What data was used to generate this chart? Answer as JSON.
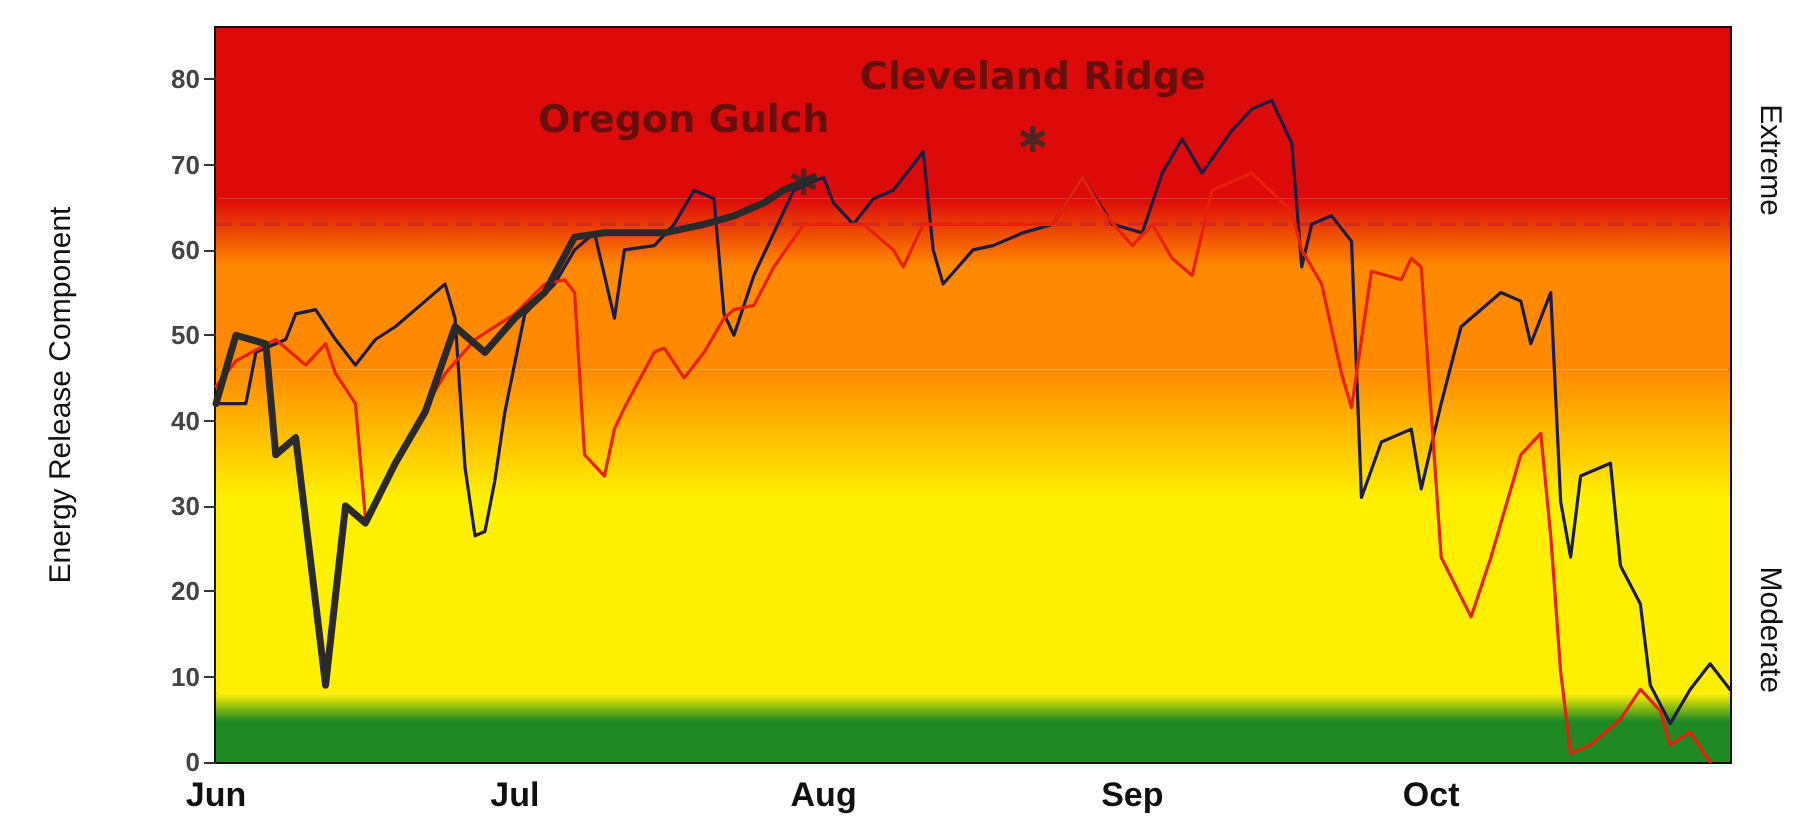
{
  "chart_data": {
    "type": "line",
    "ylabel": "Energy Release Component",
    "xlim": [
      "--06-01",
      "--10-31"
    ],
    "ylim": [
      0,
      86
    ],
    "xticks": [
      {
        "value": "--06-01",
        "label": "Jun"
      },
      {
        "value": "--07-01",
        "label": "Jul"
      },
      {
        "value": "--08-01",
        "label": "Aug"
      },
      {
        "value": "--09-01",
        "label": "Sep"
      },
      {
        "value": "--10-01",
        "label": "Oct"
      }
    ],
    "yticks": [
      0,
      10,
      20,
      30,
      40,
      50,
      60,
      70,
      80
    ],
    "grid": false,
    "marker": "none",
    "line_style": "solid",
    "series": [
      {
        "color": "#1c1c44",
        "x": [
          "--06-01",
          "--06-04",
          "--06-05",
          "--06-08",
          "--06-09",
          "--06-11",
          "--06-13",
          "--06-15",
          "--06-17",
          "--06-19",
          "--06-22",
          "--06-24",
          "--06-25",
          "--06-26",
          "--06-27",
          "--06-28",
          "--06-29",
          "--06-30",
          "--07-02",
          "--07-05",
          "--07-07",
          "--07-09",
          "--07-11",
          "--07-12",
          "--07-15",
          "--07-17",
          "--07-19",
          "--07-21",
          "--07-22",
          "--07-23",
          "--07-25",
          "--07-27",
          "--07-29",
          "--08-01",
          "--08-02",
          "--08-04",
          "--08-06",
          "--08-08",
          "--08-11",
          "--08-12",
          "--08-13",
          "--08-16",
          "--08-18",
          "--08-21",
          "--08-24",
          "--08-27",
          "--08-30",
          "--09-02",
          "--09-04",
          "--09-06",
          "--09-08",
          "--09-11",
          "--09-13",
          "--09-15",
          "--09-17",
          "--09-18",
          "--09-19",
          "--09-21",
          "--09-23",
          "--09-24",
          "--09-26",
          "--09-29",
          "--09-30",
          "--10-02",
          "--10-04",
          "--10-08",
          "--10-10",
          "--10-11",
          "--10-13",
          "--10-14",
          "--10-15",
          "--10-16",
          "--10-19",
          "--10-20",
          "--10-22",
          "--10-23",
          "--10-25",
          "--10-27",
          "--10-29",
          "--10-31"
        ],
        "values": [
          42,
          42,
          48,
          49.5,
          52.5,
          53,
          49.5,
          46.5,
          49.5,
          51,
          54,
          56,
          52,
          34.5,
          26.5,
          27,
          33,
          41,
          52.5,
          56,
          60,
          62,
          52,
          60,
          60.5,
          63,
          67,
          66,
          52.5,
          50,
          57,
          62,
          67,
          68.5,
          65.5,
          63,
          66,
          67,
          71.5,
          60,
          56,
          60,
          60.5,
          62,
          63,
          68.5,
          63,
          62,
          69,
          73,
          69,
          74,
          76.5,
          77.5,
          72.5,
          58,
          63,
          64,
          61,
          31,
          37.5,
          39,
          32,
          42,
          51,
          55,
          54,
          49,
          55,
          30.5,
          24,
          33.5,
          35,
          23,
          18.5,
          9,
          4.5,
          8.5,
          11.5,
          8.5
        ]
      },
      {
        "color": "#e8200c",
        "x": [
          "--06-01",
          "--06-03",
          "--06-07",
          "--06-10",
          "--06-12",
          "--06-13",
          "--06-15",
          "--06-16",
          "--06-22",
          "--06-24",
          "--06-27",
          "--07-01",
          "--07-04",
          "--07-06",
          "--07-07",
          "--07-08",
          "--07-10",
          "--07-11",
          "--07-12",
          "--07-15",
          "--07-16",
          "--07-18",
          "--07-20",
          "--07-22",
          "--07-23",
          "--07-25",
          "--07-27",
          "--07-30",
          "--08-05",
          "--08-08",
          "--08-09",
          "--08-11",
          "--08-24",
          "--08-27",
          "--08-29",
          "--09-01",
          "--09-03",
          "--09-05",
          "--09-07",
          "--09-09",
          "--09-11",
          "--09-13",
          "--09-17",
          "--09-18",
          "--09-20",
          "--09-22",
          "--09-23",
          "--09-25",
          "--09-28",
          "--09-29",
          "--09-30",
          "--10-02",
          "--10-05",
          "--10-07",
          "--10-10",
          "--10-12",
          "--10-13",
          "--10-14",
          "--10-15",
          "--10-17",
          "--10-20",
          "--10-22",
          "--10-24",
          "--10-25",
          "--10-27",
          "--10-29"
        ],
        "values": [
          44,
          47,
          49.5,
          46.5,
          49,
          45.5,
          42,
          28.5,
          41.5,
          45.5,
          49.5,
          52.5,
          56,
          56.5,
          55,
          36,
          33.5,
          39,
          41.5,
          48,
          48.5,
          45,
          48,
          52,
          53,
          53.5,
          58,
          63,
          63,
          60,
          58,
          63,
          63,
          68.5,
          64.5,
          60.5,
          63,
          59,
          57,
          67,
          68,
          69,
          64.5,
          60,
          56,
          45.5,
          41.5,
          57.5,
          56.5,
          59,
          58,
          24,
          17,
          24,
          36,
          38.5,
          26.5,
          10.5,
          1,
          2,
          5,
          8.5,
          6,
          2,
          3.5,
          0
        ]
      },
      {
        "color": "#2a2a2a",
        "x": [
          "--06-01",
          "--06-03",
          "--06-06",
          "--06-07",
          "--06-09",
          "--06-12",
          "--06-14",
          "--06-16",
          "--06-19",
          "--06-22",
          "--06-25",
          "--06-28",
          "--07-01",
          "--07-04",
          "--07-07",
          "--07-10",
          "--07-13",
          "--07-16",
          "--07-20",
          "--07-23",
          "--07-26",
          "--07-28",
          "--07-31"
        ],
        "values": [
          42,
          50,
          49,
          36,
          38,
          9,
          30,
          28,
          35,
          41,
          51,
          48,
          52,
          55,
          61.5,
          62,
          62,
          62,
          63,
          64,
          65.5,
          67,
          68.5
        ]
      },
      {
        "type": "scatter",
        "marker": "star",
        "color": "#2a2a2a",
        "x": [
          "--07-30",
          "--08-22"
        ],
        "values": [
          68,
          73
        ],
        "value_labels": [
          "Oregon Gulch",
          "Cleveland Ridge"
        ]
      }
    ],
    "ref_lines": [
      {
        "axis": "y",
        "value": 63,
        "color": "#d42a20",
        "line_style": "dashed"
      }
    ],
    "bands": [
      {
        "axis": "y",
        "from": 0,
        "to": 8,
        "color": "#1f8a24"
      },
      {
        "axis": "y",
        "from": 8,
        "to": 46,
        "color": "#fff000"
      },
      {
        "axis": "y",
        "from": 46,
        "to": 66,
        "color": "#ff8a00"
      },
      {
        "axis": "y",
        "from": 66,
        "to": 86,
        "color": "#dd0a0a"
      }
    ],
    "annotations": [
      "Extreme",
      "Moderate"
    ]
  }
}
